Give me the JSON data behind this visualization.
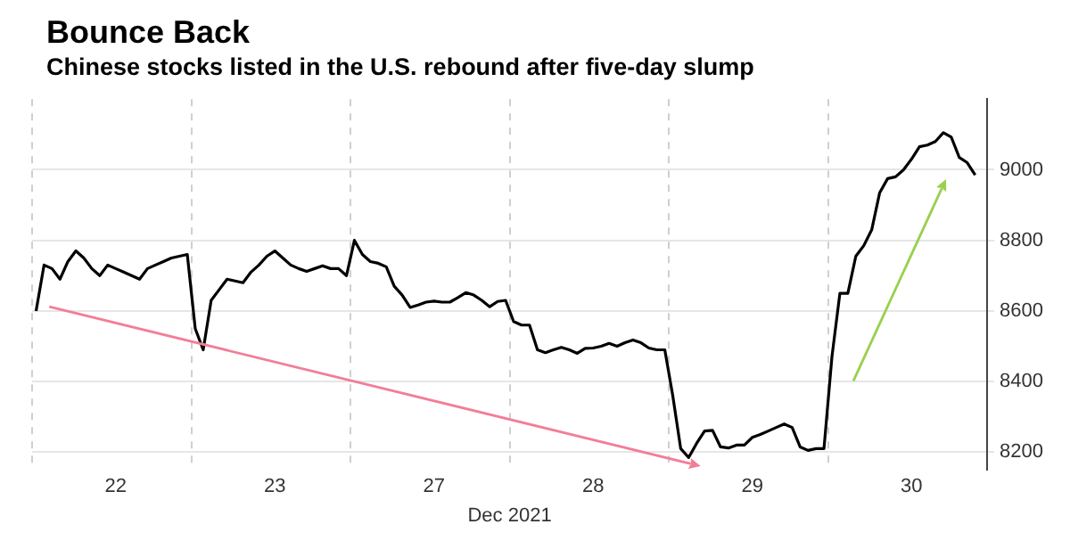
{
  "chart_data": {
    "type": "line",
    "title": "Bounce Back",
    "subtitle": "Chinese stocks listed in the U.S. rebound after five-day slump",
    "xlabel": "Dec 2021",
    "categories": [
      null,
      null,
      null,
      null,
      null,
      null,
      null,
      null,
      null,
      null,
      "22",
      null,
      null,
      null,
      null,
      null,
      null,
      null,
      null,
      null,
      null,
      null,
      null,
      null,
      null,
      null,
      null,
      null,
      null,
      null,
      "23",
      null,
      null,
      null,
      null,
      null,
      null,
      null,
      null,
      null,
      null,
      null,
      null,
      null,
      null,
      null,
      null,
      null,
      null,
      null,
      "27",
      null,
      null,
      null,
      null,
      null,
      null,
      null,
      null,
      null,
      null,
      null,
      null,
      null,
      null,
      null,
      null,
      null,
      null,
      null,
      "28",
      null,
      null,
      null,
      null,
      null,
      null,
      null,
      null,
      null,
      null,
      null,
      null,
      null,
      null,
      null,
      null,
      null,
      null,
      null,
      "29",
      null,
      null,
      null,
      null,
      null,
      null,
      null,
      null,
      null,
      null,
      null,
      null,
      null,
      null,
      null,
      null,
      null,
      null,
      null,
      "30",
      null,
      null,
      null,
      null,
      null,
      null,
      null,
      null,
      null
    ],
    "ylim": [
      8150,
      9200
    ],
    "yticks": [
      8200,
      8400,
      8600,
      8800,
      9000
    ],
    "grid": true,
    "series": [
      {
        "color": "#000000",
        "values": [
          8600,
          8730,
          8720,
          8690,
          8740,
          8770,
          8750,
          8720,
          8700,
          8730,
          8720,
          8710,
          8700,
          8690,
          8720,
          8730,
          8740,
          8750,
          8755,
          8760,
          8550,
          8490,
          8630,
          8660,
          8690,
          8685,
          8680,
          8710,
          8730,
          8755,
          8770,
          8750,
          8730,
          8720,
          8712,
          8720,
          8728,
          8720,
          8720,
          8700,
          8800,
          8760,
          8740,
          8735,
          8725,
          8670,
          8645,
          8610,
          8617,
          8625,
          8628,
          8625,
          8625,
          8638,
          8652,
          8645,
          8630,
          8612,
          8627,
          8630,
          8570,
          8560,
          8560,
          8490,
          8482,
          8490,
          8497,
          8490,
          8480,
          8494,
          8495,
          8500,
          8508,
          8500,
          8510,
          8518,
          8510,
          8495,
          8490,
          8490,
          8360,
          8210,
          8185,
          8225,
          8260,
          8262,
          8215,
          8212,
          8220,
          8220,
          8242,
          8250,
          8260,
          8270,
          8280,
          8270,
          8215,
          8205,
          8210,
          8210,
          8470,
          8650,
          8650,
          8755,
          8785,
          8830,
          8935,
          8975,
          8980,
          9000,
          9030,
          9065,
          9070,
          9080,
          9105,
          9092,
          9035,
          9020,
          8985,
          null
        ]
      }
    ]
  }
}
